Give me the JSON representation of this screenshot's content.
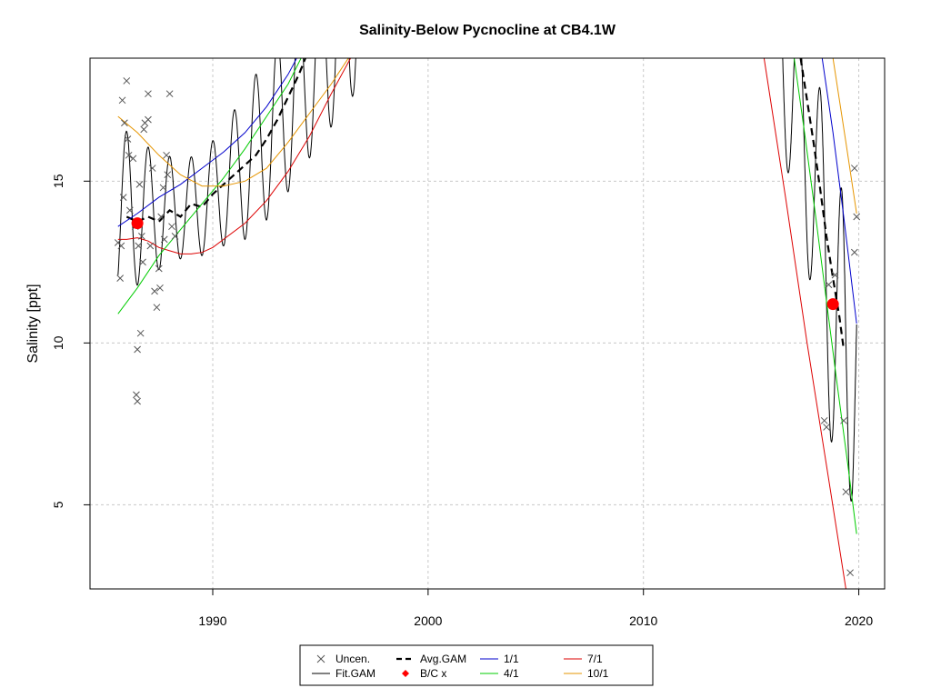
{
  "chart_data": {
    "type": "line",
    "title": "Salinity-Below Pycnocline at CB4.1W",
    "xlabel": "",
    "ylabel": "Salinity [ppt]",
    "xlim": [
      1984.3,
      2021.2
    ],
    "ylim": [
      2.4,
      18.8
    ],
    "x_ticks": [
      1990,
      2000,
      2010,
      2020
    ],
    "y_ticks": [
      5,
      10,
      15
    ],
    "grid": true,
    "legend_position": "bottom-center",
    "legend": [
      {
        "label": "Uncen.",
        "symbol": "x",
        "color": "#555555"
      },
      {
        "label": "Avg.GAM",
        "symbol": "dashed",
        "color": "#000000"
      },
      {
        "label": "1/1",
        "symbol": "line",
        "color": "#0000cc"
      },
      {
        "label": "7/1",
        "symbol": "line",
        "color": "#dd0000"
      },
      {
        "label": "Fit.GAM",
        "symbol": "line",
        "color": "#000000"
      },
      {
        "label": "B/C x",
        "symbol": "diamond",
        "color": "#ff0000"
      },
      {
        "label": "4/1",
        "symbol": "line",
        "color": "#00cc00"
      },
      {
        "label": "10/1",
        "symbol": "line",
        "color": "#e69500"
      }
    ],
    "observations": [
      [
        1985.6,
        13.1
      ],
      [
        1985.7,
        12.0
      ],
      [
        1985.75,
        13.0
      ],
      [
        1985.8,
        17.5
      ],
      [
        1985.85,
        14.5
      ],
      [
        1985.9,
        16.8
      ],
      [
        1986.0,
        18.1
      ],
      [
        1986.05,
        16.3
      ],
      [
        1986.1,
        15.8
      ],
      [
        1986.15,
        14.1
      ],
      [
        1986.3,
        15.7
      ],
      [
        1986.4,
        13.6
      ],
      [
        1986.45,
        8.4
      ],
      [
        1986.5,
        8.2
      ],
      [
        1986.5,
        9.8
      ],
      [
        1986.55,
        13.0
      ],
      [
        1986.6,
        14.9
      ],
      [
        1986.65,
        10.3
      ],
      [
        1986.7,
        13.3
      ],
      [
        1986.75,
        12.5
      ],
      [
        1986.8,
        16.6
      ],
      [
        1986.85,
        16.8
      ],
      [
        1987.0,
        16.9
      ],
      [
        1987.0,
        17.7
      ],
      [
        1987.1,
        13.0
      ],
      [
        1987.2,
        15.4
      ],
      [
        1987.3,
        11.6
      ],
      [
        1987.4,
        11.1
      ],
      [
        1987.5,
        12.3
      ],
      [
        1987.55,
        11.7
      ],
      [
        1987.6,
        13.9
      ],
      [
        1987.7,
        14.8
      ],
      [
        1987.75,
        13.2
      ],
      [
        1987.85,
        15.8
      ],
      [
        1987.9,
        15.2
      ],
      [
        1988.0,
        17.7
      ],
      [
        1988.1,
        13.6
      ],
      [
        1988.25,
        13.3
      ],
      [
        2018.4,
        7.6
      ],
      [
        2018.5,
        7.4
      ],
      [
        2018.6,
        11.8
      ],
      [
        2018.9,
        12.1
      ],
      [
        2019.3,
        7.6
      ],
      [
        2019.4,
        5.4
      ],
      [
        2019.6,
        2.9
      ],
      [
        2019.8,
        12.8
      ],
      [
        2019.8,
        15.4
      ],
      [
        2019.9,
        13.9
      ]
    ],
    "series": [
      {
        "name": "Avg.GAM",
        "color": "#000000",
        "dash": "8,5",
        "width": 2.2,
        "segments": [
          [
            [
              1986.0,
              13.9
            ],
            [
              1986.5,
              13.75
            ],
            [
              1987.0,
              13.9
            ],
            [
              1987.5,
              13.75
            ],
            [
              1988.0,
              14.1
            ],
            [
              1988.5,
              13.9
            ],
            [
              1989.0,
              14.3
            ],
            [
              1989.5,
              14.2
            ],
            [
              1990.0,
              14.6
            ],
            [
              1990.5,
              14.9
            ],
            [
              1991.0,
              15.2
            ],
            [
              1991.5,
              15.5
            ],
            [
              1992.0,
              15.8
            ],
            [
              1992.5,
              16.3
            ],
            [
              1993.0,
              16.9
            ],
            [
              1993.5,
              17.6
            ],
            [
              1994.0,
              18.3
            ],
            [
              1994.3,
              18.8
            ]
          ],
          [
            [
              2017.3,
              18.8
            ],
            [
              2017.6,
              17.5
            ],
            [
              2017.9,
              16.2
            ],
            [
              2018.2,
              14.8
            ],
            [
              2018.5,
              13.3
            ],
            [
              2018.8,
              12.0
            ],
            [
              2019.1,
              10.8
            ],
            [
              2019.3,
              9.8
            ]
          ]
        ]
      },
      {
        "name": "1/1",
        "color": "#0000cc",
        "dash": "",
        "width": 1,
        "segments": [
          [
            [
              1985.6,
              13.6
            ],
            [
              1986.5,
              14.0
            ],
            [
              1987.5,
              14.5
            ],
            [
              1988.5,
              14.9
            ],
            [
              1989.5,
              15.4
            ],
            [
              1990.5,
              15.9
            ],
            [
              1991.5,
              16.5
            ],
            [
              1992.5,
              17.3
            ],
            [
              1993.5,
              18.3
            ],
            [
              1993.9,
              18.8
            ]
          ],
          [
            [
              2018.3,
              18.8
            ],
            [
              2018.8,
              16.5
            ],
            [
              2019.3,
              13.9
            ],
            [
              2019.9,
              10.6
            ]
          ]
        ]
      },
      {
        "name": "7/1",
        "color": "#dd0000",
        "dash": "",
        "width": 1,
        "segments": [
          [
            [
              1985.6,
              13.2
            ],
            [
              1986.0,
              13.2
            ],
            [
              1986.5,
              13.25
            ],
            [
              1987.0,
              13.15
            ],
            [
              1987.5,
              12.95
            ],
            [
              1988.0,
              12.85
            ],
            [
              1988.5,
              12.75
            ],
            [
              1989.0,
              12.75
            ],
            [
              1989.5,
              12.8
            ],
            [
              1990.0,
              12.95
            ],
            [
              1990.5,
              13.2
            ],
            [
              1991.5,
              13.7
            ],
            [
              1992.5,
              14.4
            ],
            [
              1993.5,
              15.3
            ],
            [
              1994.5,
              16.4
            ],
            [
              1995.5,
              17.7
            ],
            [
              1996.4,
              18.8
            ]
          ],
          [
            [
              2015.6,
              18.8
            ],
            [
              2016.6,
              14.5
            ],
            [
              2017.6,
              10.0
            ],
            [
              2018.6,
              5.8
            ],
            [
              2019.4,
              2.4
            ]
          ]
        ]
      },
      {
        "name": "4/1",
        "color": "#00cc00",
        "dash": "",
        "width": 1,
        "segments": [
          [
            [
              1985.6,
              10.9
            ],
            [
              1986.5,
              11.7
            ],
            [
              1987.5,
              12.7
            ],
            [
              1988.5,
              13.5
            ],
            [
              1989.5,
              14.3
            ],
            [
              1990.5,
              15.1
            ],
            [
              1991.5,
              16.0
            ],
            [
              1992.5,
              17.0
            ],
            [
              1993.5,
              18.0
            ],
            [
              1994.1,
              18.8
            ]
          ],
          [
            [
              2017.0,
              18.8
            ],
            [
              2017.5,
              16.4
            ],
            [
              2018.0,
              13.9
            ],
            [
              2018.5,
              11.3
            ],
            [
              2019.0,
              8.7
            ],
            [
              2019.5,
              6.2
            ],
            [
              2019.9,
              4.1
            ]
          ]
        ]
      },
      {
        "name": "10/1",
        "color": "#e69500",
        "dash": "",
        "width": 1,
        "segments": [
          [
            [
              1985.6,
              17.0
            ],
            [
              1986.5,
              16.5
            ],
            [
              1987.5,
              15.8
            ],
            [
              1988.5,
              15.2
            ],
            [
              1989.5,
              14.85
            ],
            [
              1990.5,
              14.85
            ],
            [
              1991.5,
              15.0
            ],
            [
              1992.5,
              15.4
            ],
            [
              1993.5,
              16.2
            ],
            [
              1994.5,
              17.1
            ],
            [
              1995.5,
              18.0
            ],
            [
              1996.3,
              18.8
            ]
          ],
          [
            [
              2018.8,
              18.8
            ],
            [
              2019.1,
              17.5
            ],
            [
              2019.4,
              16.2
            ],
            [
              2019.9,
              14.0
            ]
          ]
        ]
      }
    ],
    "fit_gam": {
      "name": "Fit.GAM",
      "color": "#000000",
      "segments": [
        {
          "x_start": 1985.6,
          "x_end": 1997.0,
          "mean": [
            [
              1985.6,
              14.2
            ],
            [
              1986.5,
              14.0
            ],
            [
              1987.5,
              14.1
            ],
            [
              1988.5,
              14.1
            ],
            [
              1989.5,
              14.3
            ],
            [
              1990.5,
              14.8
            ],
            [
              1991.5,
              15.5
            ],
            [
              1992.5,
              16.3
            ],
            [
              1993.5,
              17.3
            ],
            [
              1994.5,
              18.4
            ],
            [
              1995.5,
              19.4
            ],
            [
              1996.5,
              20.4
            ],
            [
              1997.0,
              20.9
            ]
          ],
          "amp": [
            [
              1985.6,
              2.6
            ],
            [
              1987.0,
              2.0
            ],
            [
              1988.5,
              1.5
            ],
            [
              1989.5,
              1.6
            ],
            [
              1990.5,
              1.8
            ],
            [
              1991.5,
              2.3
            ],
            [
              1993.0,
              2.6
            ],
            [
              1997.0,
              2.8
            ]
          ],
          "peak_x": [
            1986.0,
            1987.0,
            1988.0,
            1989.0,
            1990.0,
            1991.0,
            1992.0,
            1993.0,
            1994.0,
            1995.0,
            1996.0,
            1997.0
          ]
        },
        {
          "x_start": 2016.2,
          "x_end": 2019.9,
          "mean": [
            [
              2016.2,
              19.8
            ],
            [
              2017.0,
              17.7
            ],
            [
              2017.5,
              16.4
            ],
            [
              2018.0,
              14.6
            ],
            [
              2018.5,
              12.6
            ],
            [
              2019.0,
              10.3
            ],
            [
              2019.4,
              8.3
            ],
            [
              2019.7,
              9.5
            ],
            [
              2019.9,
              11.5
            ]
          ],
          "amp": [
            [
              2016.2,
              3.0
            ],
            [
              2017.5,
              3.5
            ],
            [
              2018.5,
              4.3
            ],
            [
              2019.4,
              5.8
            ],
            [
              2019.9,
              3.0
            ]
          ],
          "peak_x": [
            2016.2,
            2017.2,
            2018.2,
            2019.2,
            2019.9
          ]
        }
      ]
    },
    "bc_points": [
      [
        1986.5,
        13.7
      ],
      [
        2018.8,
        11.2
      ]
    ]
  }
}
